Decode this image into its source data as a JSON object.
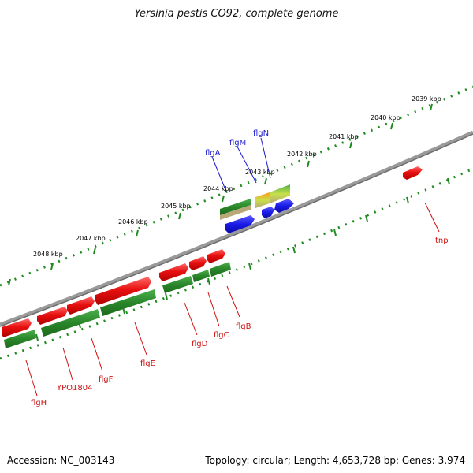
{
  "title": "Yersinia pestis CO92, complete genome",
  "footer": {
    "accession": "Accession: NC_003143",
    "summary": "Topology: circular; Length: 4,653,728 bp; Genes: 3,974"
  },
  "colors": {
    "forward_cds": "#e81010",
    "gene_track": "#2f8f2f",
    "blue_feature": "#1a1ae8",
    "backbone": "#808080",
    "ruler": "#1f8a1f",
    "label_blue": "#1a1acc",
    "label_red": "#cc1010"
  },
  "ruler": {
    "ticks": [
      "2039 kbp",
      "2040 kbp",
      "2041 kbp",
      "2042 kbp",
      "2043 kbp",
      "2044 kbp",
      "2045 kbp",
      "2046 kbp",
      "2047 kbp",
      "2048 kbp"
    ]
  },
  "gene_labels": {
    "blue": [
      "flgA",
      "flgM",
      "flgN"
    ],
    "red": [
      "tnp",
      "flgB",
      "flgC",
      "flgD",
      "flgE",
      "flgF",
      "YPO1804",
      "flgH"
    ]
  }
}
